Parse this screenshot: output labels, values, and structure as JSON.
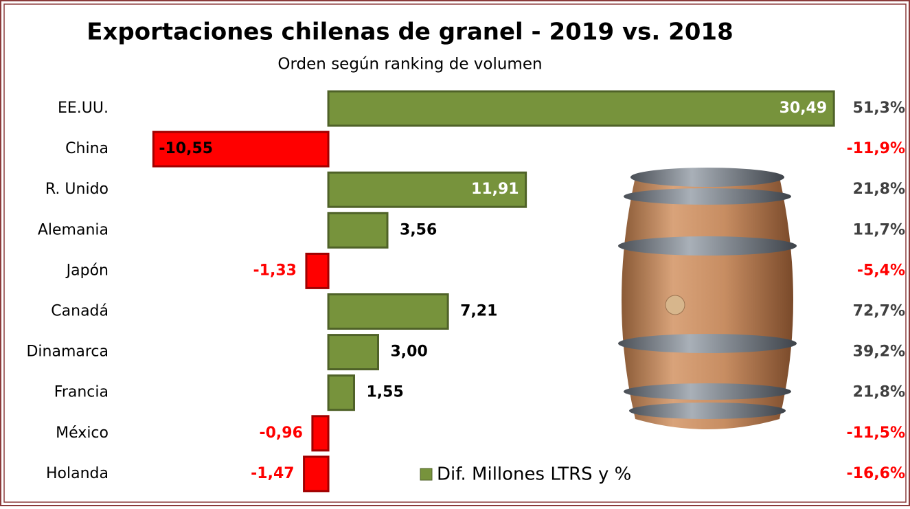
{
  "chart_data": {
    "type": "bar",
    "orientation": "horizontal",
    "title": "Exportaciones chilenas de granel - 2019 vs. 2018",
    "subtitle": "Orden según ranking de volumen",
    "categories": [
      "EE.UU.",
      "China",
      "R. Unido",
      "Alemania",
      "Japón",
      "Canadá",
      "Dinamarca",
      "Francia",
      "México",
      "Holanda"
    ],
    "series": [
      {
        "name": "Dif. Millones LTRS y %",
        "color": "#77933c",
        "negative_color": "#ff0000",
        "values": [
          30.49,
          -10.55,
          11.91,
          3.56,
          -1.33,
          7.21,
          3.0,
          1.55,
          -0.96,
          -1.47
        ],
        "value_labels": [
          "30,49",
          "-10,55",
          "11,91",
          "3,56",
          "-1,33",
          "7,21",
          "3,00",
          "1,55",
          "-0,96",
          "-1,47"
        ]
      }
    ],
    "percent_change": {
      "values": [
        51.3,
        -11.9,
        21.8,
        11.7,
        -5.4,
        72.7,
        39.2,
        21.8,
        -11.5,
        -16.6
      ],
      "value_labels": [
        "51,3%",
        "-11,9%",
        "21,8%",
        "11,7%",
        "-5,4%",
        "72,7%",
        "39,2%",
        "21,8%",
        "-11,5%",
        "-16,6%"
      ]
    },
    "xlim": [
      -11,
      31
    ]
  }
}
